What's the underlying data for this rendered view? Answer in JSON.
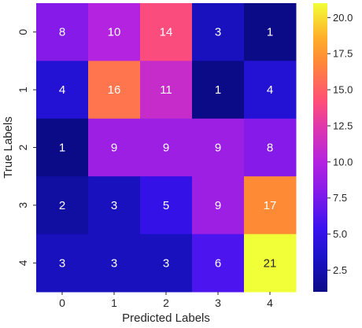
{
  "chart_data": {
    "type": "heatmap",
    "title": "",
    "xlabel": "Predicted Labels",
    "ylabel": "True Labels",
    "x_categories": [
      "0",
      "1",
      "2",
      "3",
      "4"
    ],
    "y_categories": [
      "0",
      "1",
      "2",
      "3",
      "4"
    ],
    "matrix": [
      [
        8,
        10,
        14,
        3,
        1
      ],
      [
        4,
        16,
        11,
        1,
        4
      ],
      [
        1,
        9,
        9,
        9,
        8
      ],
      [
        2,
        3,
        5,
        9,
        17
      ],
      [
        3,
        3,
        3,
        6,
        21
      ]
    ],
    "colormap": "plasma-like (blue-purple-orange-yellow)",
    "colorbar": {
      "vmin": 1,
      "vmax": 21,
      "ticks": [
        2.5,
        5.0,
        7.5,
        10.0,
        12.5,
        15.0,
        17.5,
        20.0
      ],
      "tick_labels": [
        "2.5",
        "5.0",
        "7.5",
        "10.0",
        "12.5",
        "15.0",
        "17.5",
        "20.0"
      ]
    },
    "colors": {
      "low": "#0d0d8c",
      "mid_low": "#3a14e6",
      "mid": "#a320e6",
      "mid_high": "#ff4f7b",
      "high_orange": "#ff9a2e",
      "top": "#f1ff38"
    }
  }
}
